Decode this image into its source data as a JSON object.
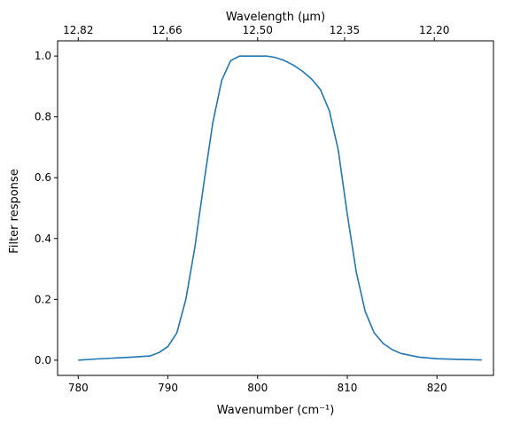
{
  "chart_data": {
    "type": "line",
    "title": "",
    "xlabel": "Wavenumber (cm⁻¹)",
    "ylabel": "Filter response",
    "x2label": "Wavelength (μm)",
    "xlim": [
      777.7,
      826.3
    ],
    "ylim": [
      -0.05,
      1.05
    ],
    "xticks": [
      780,
      790,
      800,
      810,
      820
    ],
    "yticks": [
      0.0,
      0.2,
      0.4,
      0.6,
      0.8,
      1.0
    ],
    "ytick_labels": [
      "0.0",
      "0.2",
      "0.4",
      "0.6",
      "0.8",
      "1.0"
    ],
    "x2ticks": [
      {
        "label": "12.82",
        "wavenumber": 780.0
      },
      {
        "label": "12.66",
        "wavenumber": 789.9
      },
      {
        "label": "12.50",
        "wavenumber": 800.0
      },
      {
        "label": "12.35",
        "wavenumber": 809.7
      },
      {
        "label": "12.20",
        "wavenumber": 819.7
      }
    ],
    "grid": false,
    "series": [
      {
        "color": "#1f77b4",
        "x": [
          780,
          782,
          784,
          786,
          788,
          789,
          790,
          791,
          792,
          793,
          794,
          795,
          796,
          797,
          798,
          799,
          800,
          801,
          802,
          803,
          804,
          805,
          806,
          807,
          808,
          809,
          810,
          811,
          812,
          813,
          814,
          815,
          816,
          818,
          820,
          822,
          825
        ],
        "y": [
          0.0,
          0.004,
          0.007,
          0.01,
          0.014,
          0.025,
          0.045,
          0.09,
          0.2,
          0.37,
          0.58,
          0.78,
          0.92,
          0.985,
          1.0,
          1.0,
          1.0,
          1.0,
          0.995,
          0.985,
          0.97,
          0.95,
          0.925,
          0.89,
          0.82,
          0.69,
          0.48,
          0.29,
          0.16,
          0.09,
          0.055,
          0.035,
          0.022,
          0.01,
          0.005,
          0.003,
          0.001
        ]
      }
    ]
  }
}
